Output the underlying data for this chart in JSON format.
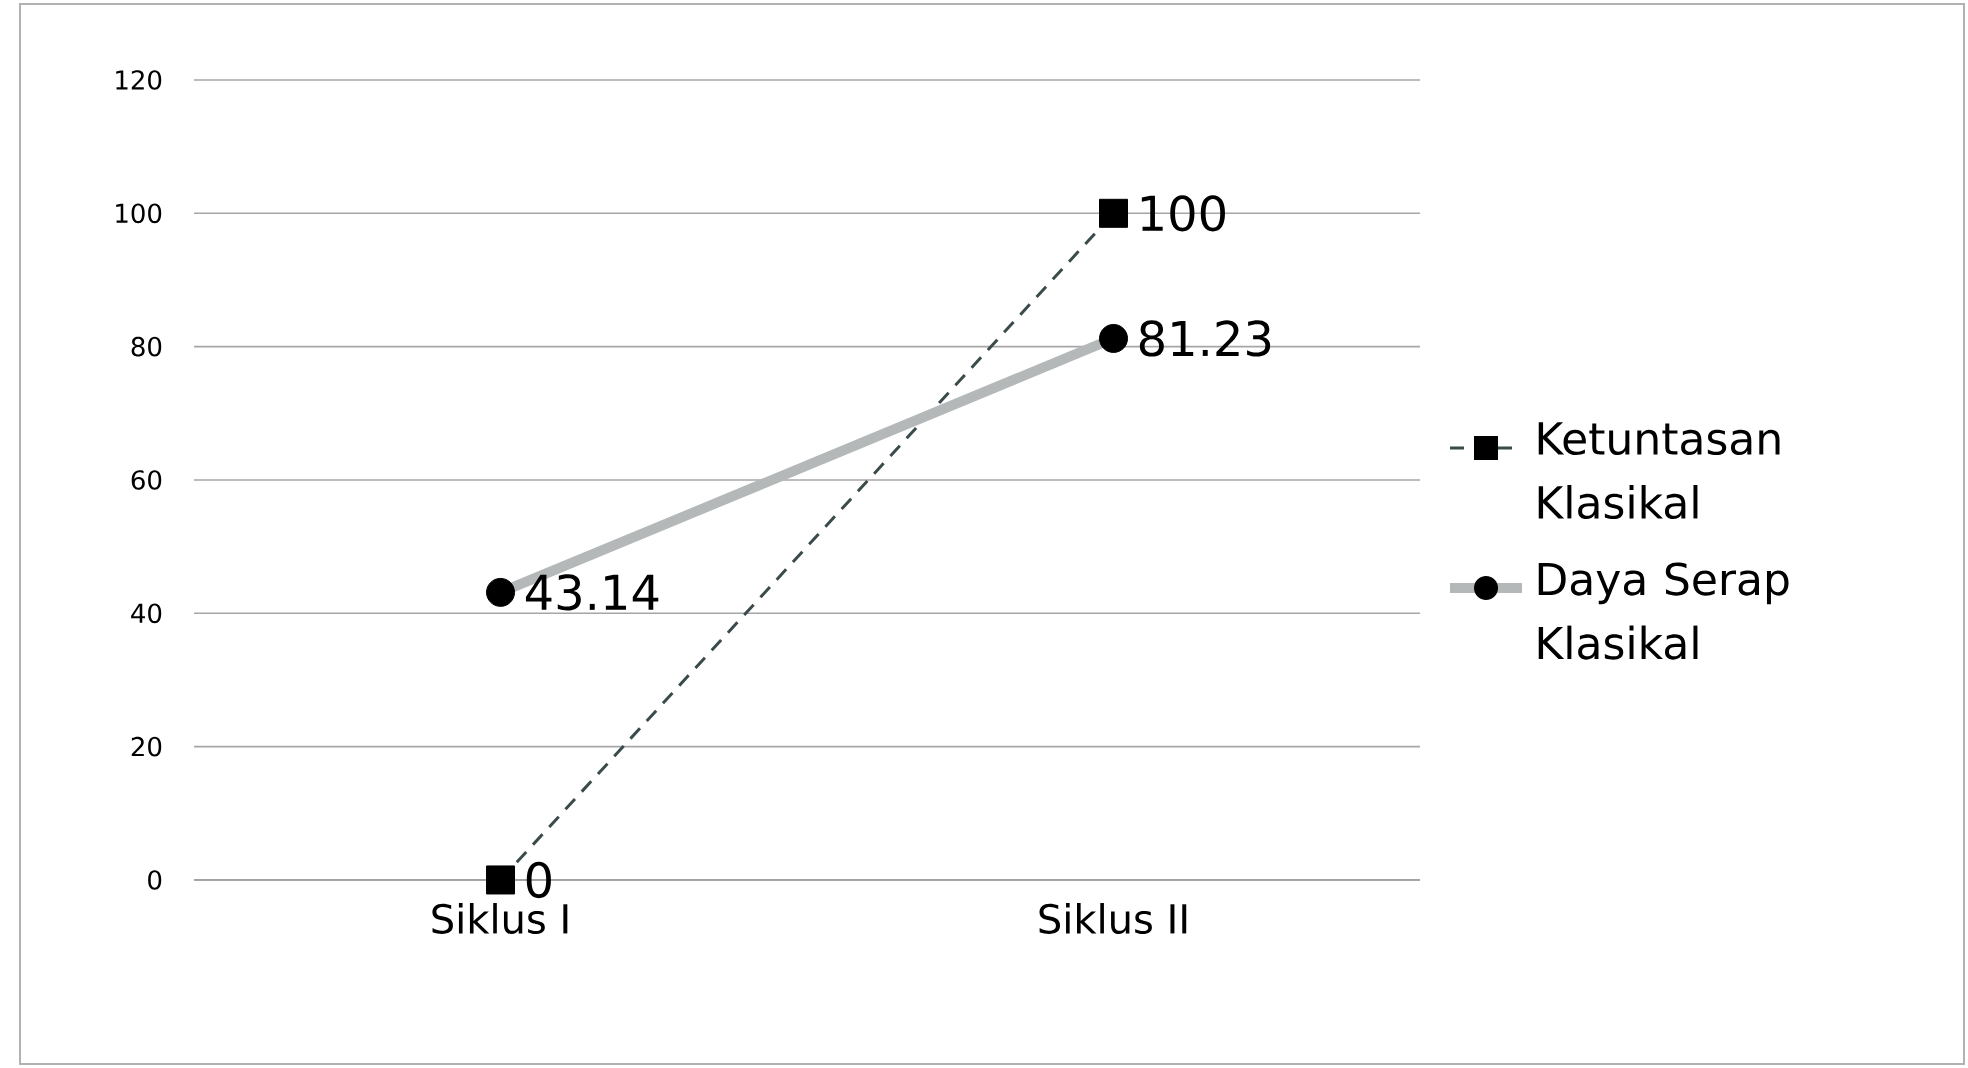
{
  "chart_data": {
    "type": "line",
    "categories": [
      "Siklus I",
      "Siklus II"
    ],
    "series": [
      {
        "name": "Ketuntasan Klasikal",
        "color": "#3b4b4b",
        "values": [
          0,
          100
        ],
        "marker": "square",
        "line_style": "dashed"
      },
      {
        "name": "Daya Serap Klasikal",
        "color": "#b4b8b8",
        "values": [
          43.14,
          81.23
        ],
        "marker": "circle",
        "line_style": "solid"
      }
    ],
    "ylim": [
      0,
      120
    ],
    "yticks": [
      0,
      20,
      40,
      60,
      80,
      100,
      120
    ],
    "grid": "y",
    "legend": "right",
    "data_labels": true
  }
}
